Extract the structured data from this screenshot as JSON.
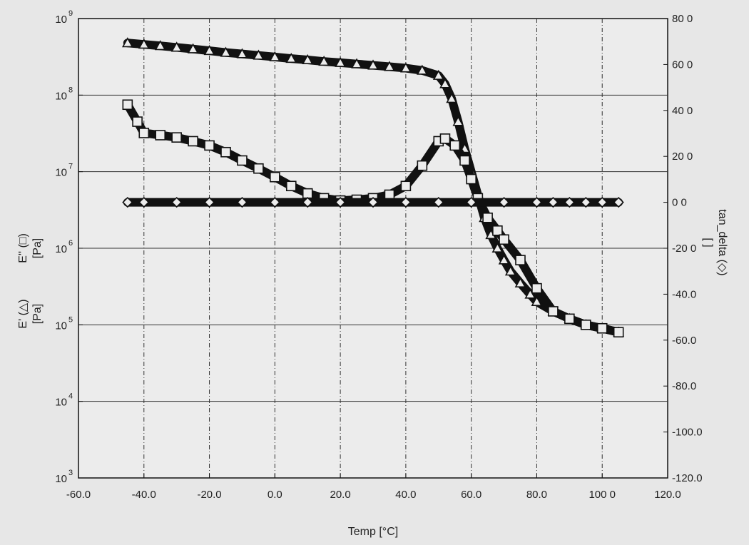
{
  "chart_data": {
    "type": "scatter",
    "title": "",
    "xlabel": "Temp [°C]",
    "ylabel_left": [
      "E'' (□)",
      "[Pa]",
      "E' (△)",
      "[Pa]"
    ],
    "ylabel_right": [
      "tan_delta (◇)",
      "[ ]"
    ],
    "xlim": [
      -60,
      120
    ],
    "ylim_left": [
      1000,
      1000000000
    ],
    "y_left_scale": "log",
    "ylim_right": [
      -120,
      80
    ],
    "grid": true,
    "x_ticks": [
      "-60.0",
      "-40.0",
      "-20.0",
      "0.0",
      "20.0",
      "40.0",
      "60.0",
      "80.0",
      "100 0",
      "120.0"
    ],
    "y_left_ticks": [
      {
        "base": "10",
        "exp": "3"
      },
      {
        "base": "10",
        "exp": "4"
      },
      {
        "base": "10",
        "exp": "5"
      },
      {
        "base": "10",
        "exp": "6"
      },
      {
        "base": "10",
        "exp": "7"
      },
      {
        "base": "10",
        "exp": "8"
      },
      {
        "base": "10",
        "exp": "9"
      }
    ],
    "y_right_ticks": [
      "-120.0",
      "-100.0",
      "-80.0",
      "-60.0",
      "-40.0",
      "-20 0",
      "0 0",
      "20 0",
      "40 0",
      "60 0",
      "80 0"
    ],
    "series": [
      {
        "marker": "triangle",
        "axis": "left",
        "x": [
          -45,
          -40,
          -35,
          -30,
          -25,
          -20,
          -15,
          -10,
          -5,
          0,
          5,
          10,
          15,
          20,
          25,
          30,
          35,
          40,
          45,
          50,
          52,
          54,
          56,
          58,
          60,
          62,
          64,
          66,
          68,
          70,
          72,
          75,
          78,
          80,
          85,
          90,
          95,
          100,
          105
        ],
        "y": [
          480000000,
          460000000,
          440000000,
          420000000,
          400000000,
          380000000,
          360000000,
          345000000,
          330000000,
          315000000,
          300000000,
          288000000,
          275000000,
          265000000,
          255000000,
          245000000,
          235000000,
          225000000,
          210000000,
          180000000,
          140000000,
          90000000,
          45000000,
          20000000,
          10000000,
          5000000,
          2500000,
          1500000,
          1000000,
          700000,
          500000,
          350000,
          250000,
          200000,
          150000,
          120000,
          100000,
          90000,
          80000
        ]
      },
      {
        "marker": "square",
        "axis": "left",
        "x": [
          -45,
          -42,
          -40,
          -35,
          -30,
          -25,
          -20,
          -15,
          -10,
          -5,
          0,
          5,
          10,
          15,
          20,
          25,
          30,
          35,
          40,
          45,
          50,
          52,
          55,
          58,
          60,
          62,
          65,
          68,
          70,
          75,
          80,
          85,
          90,
          95,
          100,
          105
        ],
        "y": [
          75000000,
          45000000,
          32000000,
          30000000,
          28000000,
          25000000,
          22000000,
          18000000,
          14000000,
          11000000,
          8500000,
          6500000,
          5200000,
          4500000,
          4200000,
          4300000,
          4500000,
          5000000,
          6500000,
          12000000,
          25000000,
          27000000,
          22000000,
          14000000,
          8000000,
          4500000,
          2500000,
          1700000,
          1300000,
          700000,
          300000,
          150000,
          120000,
          100000,
          90000,
          80000
        ]
      },
      {
        "marker": "diamond",
        "axis": "right",
        "x": [
          -45,
          -40,
          -30,
          -20,
          -10,
          0,
          10,
          20,
          30,
          40,
          50,
          60,
          70,
          80,
          85,
          90,
          95,
          100,
          105
        ],
        "y": [
          0,
          0,
          0,
          0,
          0,
          0,
          0,
          0,
          0,
          0,
          0,
          0,
          0,
          0,
          0,
          0,
          0,
          0,
          0
        ]
      }
    ]
  },
  "colors": {
    "background": "#e7e7e7",
    "plot_background": "#ececec",
    "ink": "#111111",
    "grid": "#222222"
  }
}
